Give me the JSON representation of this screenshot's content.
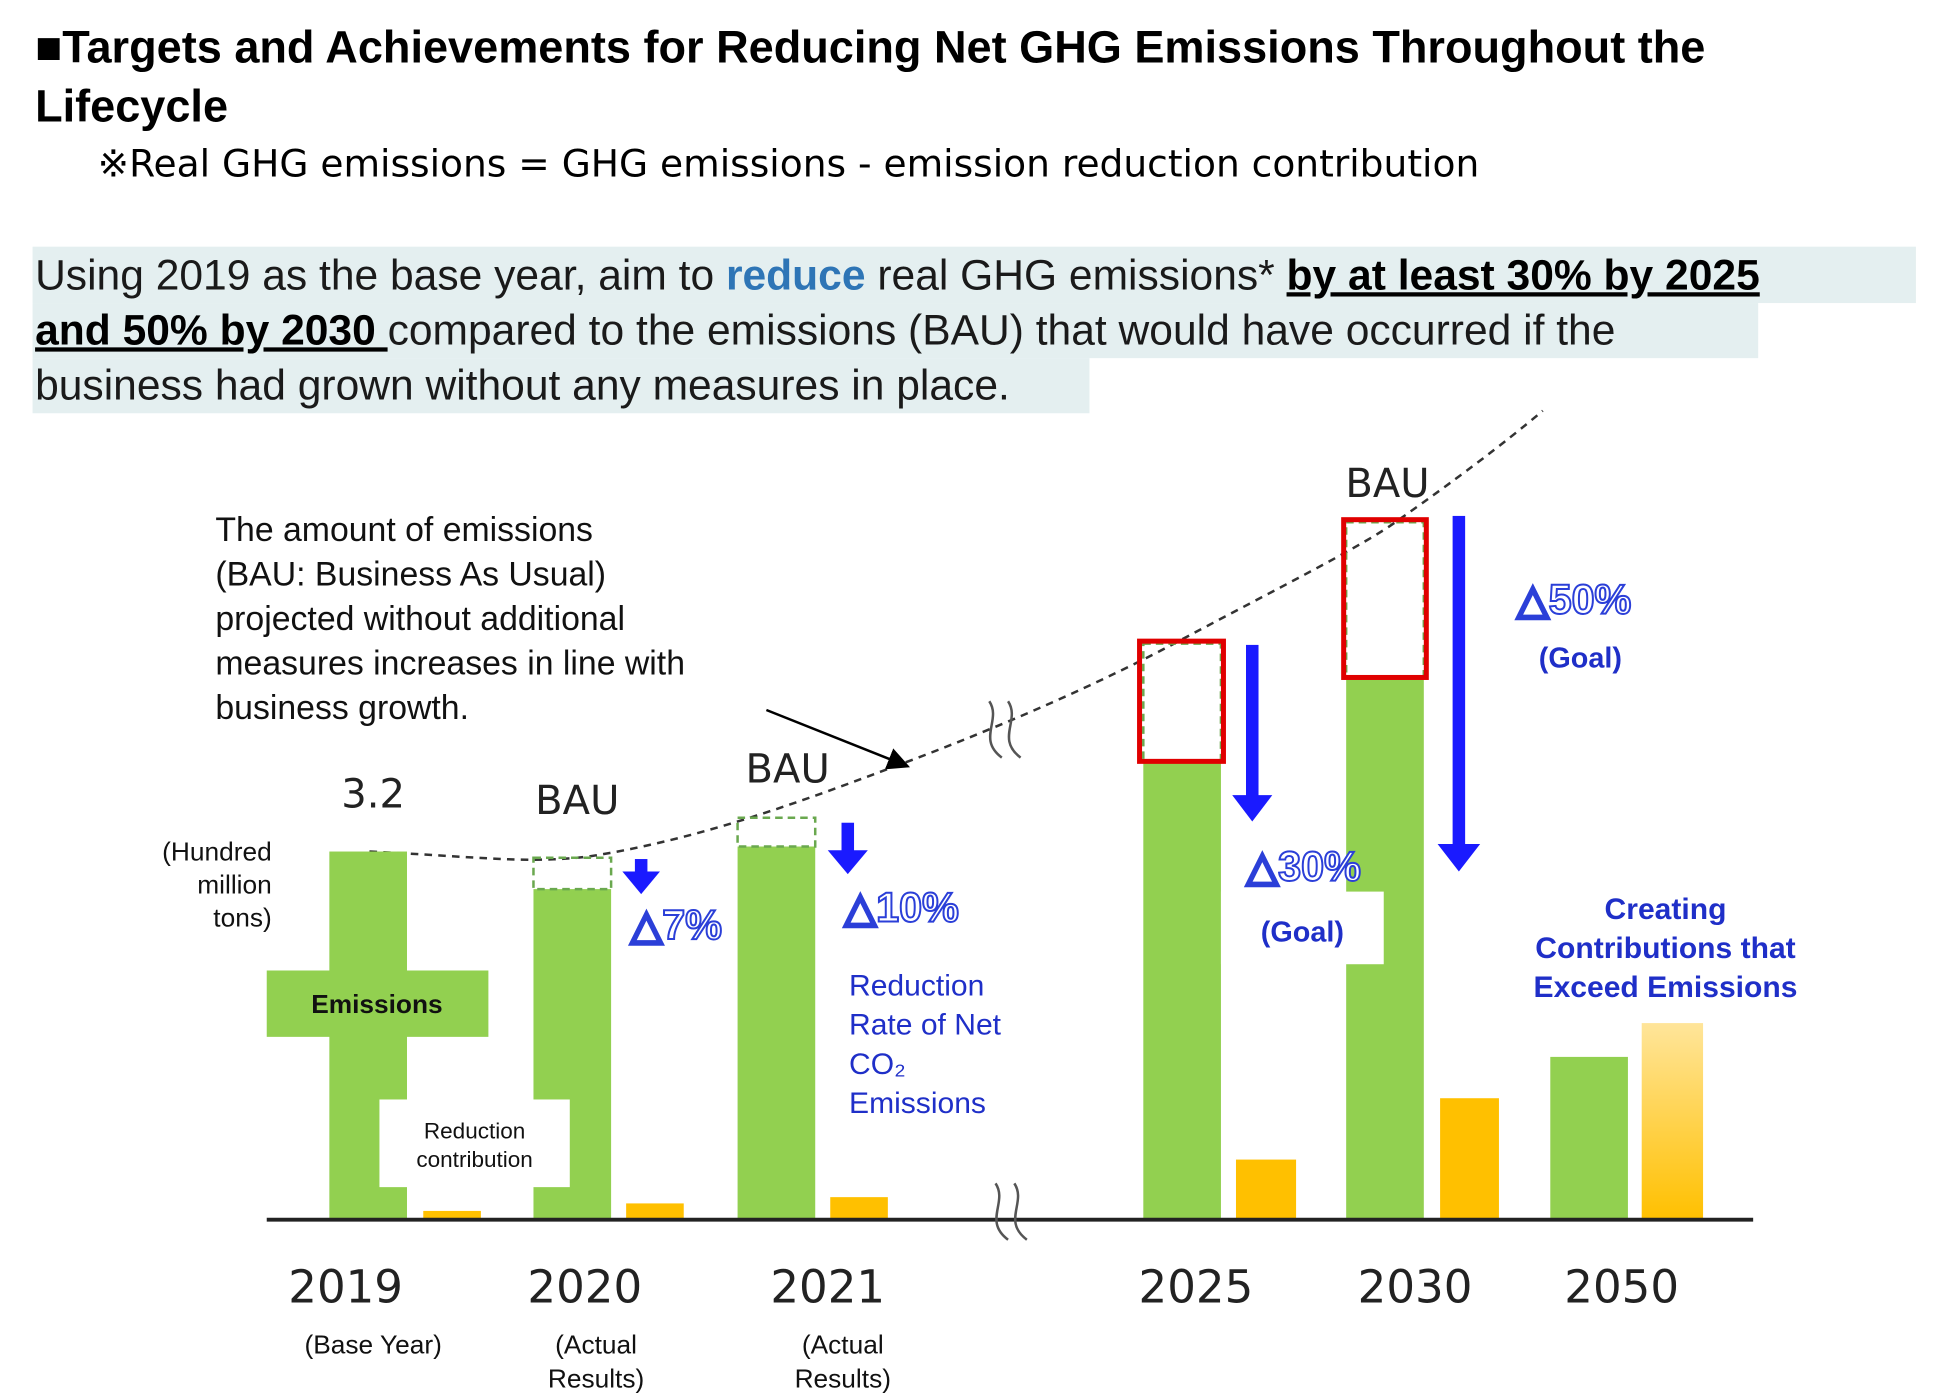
{
  "header": {
    "title_lines": [
      "■Targets and Achievements for Reducing Net GHG Emissions Throughout the",
      "Lifecycle"
    ],
    "note": "※Real GHG emissions = GHG emissions - emission reduction contribution"
  },
  "statement": {
    "lines": [
      [
        {
          "text": "Using 2019 as the base year, aim to "
        },
        {
          "text": "reduce",
          "emphasis": "blue"
        },
        {
          "text": " real GHG emissions* "
        },
        {
          "text": "by at least 30% by 2025",
          "emphasis": "underline"
        }
      ],
      [
        {
          "text": "and 50% by 2030 ",
          "emphasis": "underline"
        },
        {
          "text": "compared to the emissions (BAU) that would have occurred if the"
        }
      ],
      [
        {
          "text": "business had grown without any measures in place."
        }
      ]
    ]
  },
  "diagram": {
    "annotation_lines": [
      "The amount of emissions",
      "(BAU: Business As Usual)",
      "projected without additional",
      "measures increases in line with",
      "business growth."
    ],
    "base_value": "3.2",
    "unit_lines": [
      "(Hundred",
      "million",
      "tons)"
    ],
    "emissions_label": "Emissions",
    "contribution_label_lines": [
      "Reduction",
      "contribution"
    ],
    "bau_labels": [
      "BAU",
      "BAU",
      "BAU"
    ],
    "reductions": [
      {
        "label": "△7%"
      },
      {
        "label": "△10%"
      },
      {
        "label": "△30%",
        "note": "(Goal)"
      },
      {
        "label": "△50%",
        "note": "(Goal)"
      }
    ],
    "rate_label_lines": [
      "Reduction",
      "Rate of Net",
      "CO₂",
      "Emissions"
    ],
    "goal_2050_lines": [
      "Creating",
      "Contributions that",
      "Exceed Emissions"
    ],
    "years": [
      {
        "year": "2019",
        "sub_lines": [
          "(Base Year)"
        ]
      },
      {
        "year": "2020",
        "sub_lines": [
          "(Actual",
          "Results)"
        ]
      },
      {
        "year": "2021",
        "sub_lines": [
          "(Actual",
          "Results)"
        ]
      },
      {
        "year": "2025"
      },
      {
        "year": "2030"
      },
      {
        "year": "2050"
      }
    ]
  }
}
